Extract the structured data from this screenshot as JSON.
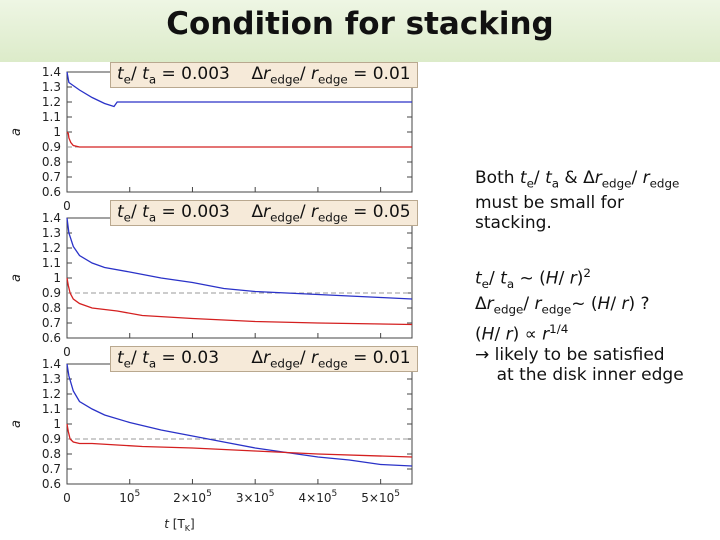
{
  "title": "Condition for stacking",
  "chart_data": [
    {
      "type": "line",
      "panel_label": {
        "ratio_time": "t_e / t_a = 0.003",
        "ratio_edge": "Δr_edge / r_edge = 0.01"
      },
      "ylabel": "a",
      "xlabel": "",
      "xlim": [
        0,
        550000
      ],
      "ylim": [
        0.6,
        1.4
      ],
      "yticks": [
        "0.6",
        "0.7",
        "0.8",
        "0.9",
        "1",
        "1.1",
        "1.2",
        "1.3",
        "1.4"
      ],
      "xticks": [
        "0"
      ],
      "reference_y": 0.9,
      "series": [
        {
          "color": "#2a32c8",
          "x": [
            0,
            3000,
            20000,
            40000,
            60000,
            75000,
            80000,
            90000,
            100000,
            550000
          ],
          "y": [
            1.4,
            1.33,
            1.28,
            1.23,
            1.19,
            1.17,
            1.2,
            1.2,
            1.2,
            1.2
          ]
        },
        {
          "color": "#d42020",
          "x": [
            0,
            2000,
            3000,
            6000,
            10000,
            20000,
            40000,
            550000
          ],
          "y": [
            1.0,
            0.99,
            0.96,
            0.93,
            0.91,
            0.9,
            0.9,
            0.9
          ]
        }
      ]
    },
    {
      "type": "line",
      "panel_label": {
        "ratio_time": "t_e / t_a = 0.003",
        "ratio_edge": "Δr_edge / r_edge = 0.05"
      },
      "ylabel": "a",
      "xlabel": "",
      "xlim": [
        0,
        550000
      ],
      "ylim": [
        0.6,
        1.4
      ],
      "yticks": [
        "0.6",
        "0.7",
        "0.8",
        "0.9",
        "1",
        "1.1",
        "1.2",
        "1.3",
        "1.4"
      ],
      "xticks": [
        "0"
      ],
      "reference_y": 0.9,
      "series": [
        {
          "color": "#2a32c8",
          "x": [
            0,
            3000,
            10000,
            20000,
            40000,
            60000,
            100000,
            150000,
            200000,
            250000,
            300000,
            350000,
            400000,
            450000,
            500000,
            550000
          ],
          "y": [
            1.4,
            1.3,
            1.21,
            1.15,
            1.1,
            1.07,
            1.04,
            1.0,
            0.97,
            0.93,
            0.91,
            0.9,
            0.89,
            0.88,
            0.87,
            0.86
          ]
        },
        {
          "color": "#d42020",
          "x": [
            0,
            2000,
            5000,
            10000,
            20000,
            40000,
            80000,
            120000,
            200000,
            300000,
            400000,
            550000
          ],
          "y": [
            1.0,
            0.95,
            0.9,
            0.86,
            0.83,
            0.8,
            0.78,
            0.75,
            0.73,
            0.71,
            0.7,
            0.69
          ]
        }
      ]
    },
    {
      "type": "line",
      "panel_label": {
        "ratio_time": "t_e / t_a = 0.03",
        "ratio_edge": "Δr_edge / r_edge = 0.01"
      },
      "ylabel": "a",
      "xlabel": "t [T_K]",
      "xlim": [
        0,
        550000
      ],
      "ylim": [
        0.6,
        1.4
      ],
      "yticks": [
        "0.6",
        "0.7",
        "0.8",
        "0.9",
        "1",
        "1.1",
        "1.2",
        "1.3",
        "1.4"
      ],
      "xticks": [
        "0",
        "10^5",
        "2×10^5",
        "3×10^5",
        "4×10^5",
        "5×10^5"
      ],
      "reference_y": 0.9,
      "series": [
        {
          "color": "#2a32c8",
          "x": [
            0,
            3000,
            10000,
            20000,
            40000,
            60000,
            100000,
            150000,
            200000,
            250000,
            300000,
            350000,
            400000,
            450000,
            500000,
            550000
          ],
          "y": [
            1.4,
            1.32,
            1.22,
            1.15,
            1.1,
            1.06,
            1.01,
            0.96,
            0.92,
            0.88,
            0.84,
            0.81,
            0.78,
            0.76,
            0.73,
            0.72
          ]
        },
        {
          "color": "#d42020",
          "x": [
            0,
            2000,
            5000,
            10000,
            20000,
            40000,
            80000,
            120000,
            200000,
            300000,
            400000,
            550000
          ],
          "y": [
            1.0,
            0.95,
            0.9,
            0.88,
            0.87,
            0.87,
            0.86,
            0.85,
            0.84,
            0.82,
            0.8,
            0.78
          ]
        }
      ]
    }
  ],
  "side_text": {
    "line1": "Both t_e / t_a & Δr_edge / r_edge",
    "line2": "must be small for",
    "line3": "stacking.",
    "line4": "t_e / t_a ~ (H / r)^2",
    "line5": "Δr_edge / r_edge ~ (H / r) ?",
    "line6": "(H / r) ∝ r^1/4",
    "line7": "→ likely to be satisfied",
    "line8": "at the disk inner edge"
  }
}
